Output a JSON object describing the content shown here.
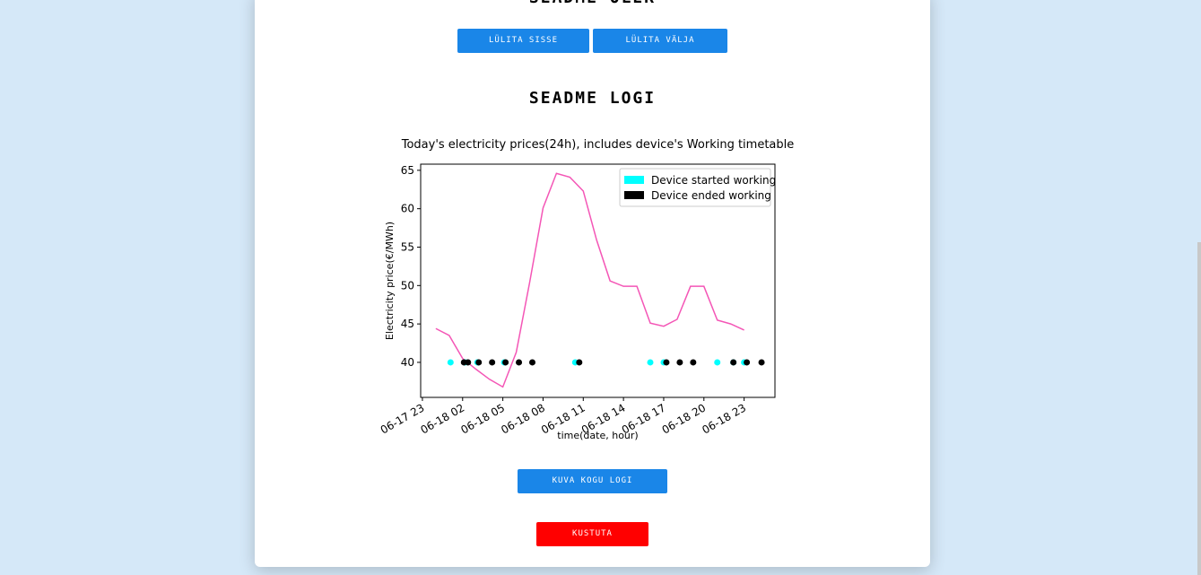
{
  "header": {
    "title": "SEADME OLEK"
  },
  "buttons": [
    "LÜLITA SISSE",
    "LÜLITA VÄLJA"
  ],
  "log_title": "SEADME LOGI",
  "chart_data": {
    "type": "line",
    "title": "Today's electricity prices(24h), includes device's Working timetable",
    "xlabel": "time(date, hour)",
    "ylabel": "Electricity price(€/MWh)",
    "xlim": [
      22.87,
      49.3
    ],
    "ylim": [
      35.44,
      65.8
    ],
    "xticks": [
      {
        "value": 23,
        "label": "06-17 23"
      },
      {
        "value": 26,
        "label": "06-18 02"
      },
      {
        "value": 29,
        "label": "06-18 05"
      },
      {
        "value": 32,
        "label": "06-18 08"
      },
      {
        "value": 35,
        "label": "06-18 11"
      },
      {
        "value": 38,
        "label": "06-18 14"
      },
      {
        "value": 41,
        "label": "06-18 17"
      },
      {
        "value": 44,
        "label": "06-18 20"
      },
      {
        "value": 47,
        "label": "06-18 23"
      }
    ],
    "yticks": [
      40,
      45,
      50,
      55,
      60,
      65
    ],
    "legend": "upper right",
    "series": [
      {
        "type": "line",
        "color": "#f456b6",
        "x": [
          24,
          25,
          26,
          27,
          28,
          29,
          30,
          31,
          32,
          33,
          34,
          35,
          36,
          37,
          38,
          39,
          40,
          41,
          42,
          43,
          44,
          45,
          46,
          47
        ],
        "values": [
          44.4,
          43.5,
          40.5,
          39.1,
          37.8,
          36.8,
          41.3,
          50.4,
          60.1,
          64.6,
          64.1,
          62.3,
          55.9,
          50.6,
          49.9,
          49.9,
          45.1,
          44.7,
          45.6,
          49.9,
          49.9,
          45.5,
          45.0,
          44.2
        ]
      },
      {
        "type": "scatter",
        "name": "Device started working",
        "color": "#00ffff",
        "x": [
          25.1,
          26.2,
          27.1,
          29.1,
          34.4,
          40.0,
          41.0,
          45.0,
          46.2,
          47.0
        ],
        "values": [
          40,
          40,
          40,
          40,
          40,
          40,
          40,
          40,
          40,
          40
        ]
      },
      {
        "type": "scatter",
        "name": "Device ended working",
        "color": "#000000",
        "x": [
          26.1,
          26.4,
          27.2,
          28.2,
          29.2,
          30.2,
          31.2,
          34.7,
          41.2,
          42.2,
          43.2,
          46.2,
          47.2,
          48.3
        ],
        "values": [
          40,
          40,
          40,
          40,
          40,
          40,
          40,
          40,
          40,
          40,
          40,
          40,
          40,
          40
        ]
      }
    ]
  },
  "buttons_bottom": [
    "KUVA KOGU LOGI",
    "KUSTUTA"
  ]
}
